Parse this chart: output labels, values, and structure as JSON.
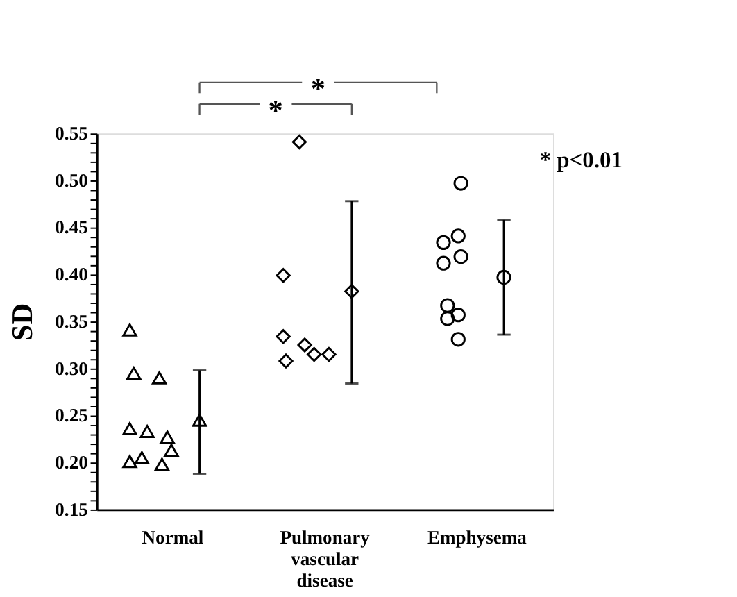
{
  "chart_data": {
    "type": "scatter",
    "ylabel": "SD",
    "categories": [
      "Normal",
      "Pulmonary vascular disease",
      "Emphysema"
    ],
    "series": [
      {
        "marker": "triangle",
        "color": "#000000",
        "x": [
          "Normal",
          "Normal",
          "Normal",
          "Normal",
          "Normal",
          "Normal",
          "Normal",
          "Normal",
          "Normal",
          "Normal"
        ],
        "values": [
          0.341,
          0.295,
          0.29,
          0.236,
          0.233,
          0.227,
          0.213,
          0.201,
          0.205,
          0.198
        ]
      },
      {
        "marker": "diamond",
        "color": "#000000",
        "x": [
          "Pulmonary vascular disease",
          "Pulmonary vascular disease",
          "Pulmonary vascular disease",
          "Pulmonary vascular disease",
          "Pulmonary vascular disease",
          "Pulmonary vascular disease",
          "Pulmonary vascular disease"
        ],
        "values": [
          0.541,
          0.399,
          0.334,
          0.308,
          0.325,
          0.315,
          0.315
        ]
      },
      {
        "marker": "circle",
        "color": "#000000",
        "x": [
          "Emphysema",
          "Emphysema",
          "Emphysema",
          "Emphysema",
          "Emphysema",
          "Emphysema",
          "Emphysema",
          "Emphysema",
          "Emphysema"
        ],
        "values": [
          0.497,
          0.441,
          0.434,
          0.419,
          0.412,
          0.367,
          0.357,
          0.353,
          0.331
        ]
      },
      {
        "marker": "triangle",
        "color": "#000000",
        "x": [
          "Normal"
        ],
        "values": [
          0.245
        ],
        "errors": [
          [
            0.188,
            0.298
          ]
        ]
      },
      {
        "marker": "diamond",
        "color": "#000000",
        "x": [
          "Pulmonary vascular disease"
        ],
        "values": [
          0.382
        ],
        "errors": [
          [
            0.284,
            0.478
          ]
        ]
      },
      {
        "marker": "circle",
        "color": "#000000",
        "x": [
          "Emphysema"
        ],
        "values": [
          0.397
        ],
        "errors": [
          [
            0.336,
            0.458
          ]
        ]
      }
    ],
    "ylim": [
      0.15,
      0.55
    ],
    "yticks": [
      0.15,
      {
        "value": 0.16,
        "label": null
      },
      {
        "value": 0.17,
        "label": null
      },
      {
        "value": 0.18,
        "label": null
      },
      {
        "value": 0.19,
        "label": null
      },
      {
        "value": 0.2,
        "label": "0.20"
      },
      {
        "value": 0.21,
        "label": null
      },
      {
        "value": 0.22,
        "label": null
      },
      {
        "value": 0.23,
        "label": null
      },
      {
        "value": 0.24,
        "label": null
      },
      0.25,
      {
        "value": 0.26,
        "label": null
      },
      {
        "value": 0.27,
        "label": null
      },
      {
        "value": 0.28,
        "label": null
      },
      {
        "value": 0.29,
        "label": null
      },
      {
        "value": 0.3,
        "label": "0.30"
      },
      {
        "value": 0.31,
        "label": null
      },
      {
        "value": 0.32,
        "label": null
      },
      {
        "value": 0.33,
        "label": null
      },
      {
        "value": 0.34,
        "label": null
      },
      0.35,
      {
        "value": 0.36,
        "label": null
      },
      {
        "value": 0.37,
        "label": null
      },
      {
        "value": 0.38,
        "label": null
      },
      {
        "value": 0.39,
        "label": null
      },
      {
        "value": 0.4,
        "label": "0.40"
      },
      {
        "value": 0.41,
        "label": null
      },
      {
        "value": 0.42,
        "label": null
      },
      {
        "value": 0.43,
        "label": null
      },
      {
        "value": 0.44,
        "label": null
      },
      0.45,
      {
        "value": 0.46,
        "label": null
      },
      {
        "value": 0.47,
        "label": null
      },
      {
        "value": 0.48,
        "label": null
      },
      {
        "value": 0.49,
        "label": null
      },
      {
        "value": 0.5,
        "label": "0.50"
      },
      {
        "value": 0.51,
        "label": null
      },
      {
        "value": 0.52,
        "label": null
      },
      {
        "value": 0.53,
        "label": null
      },
      {
        "value": 0.54,
        "label": null
      },
      0.55
    ],
    "grid": false,
    "annotations": [
      "*",
      "*",
      "* p<0.01"
    ]
  }
}
